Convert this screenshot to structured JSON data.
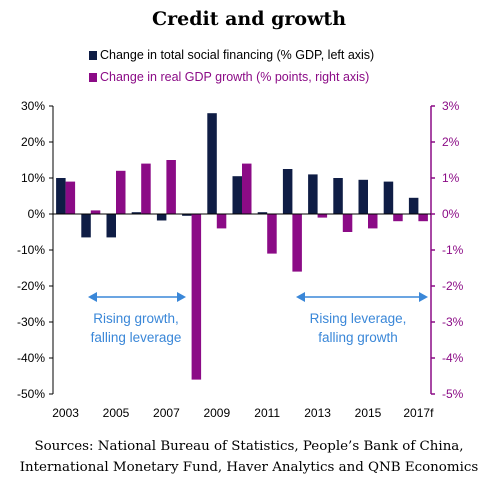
{
  "chart_data": {
    "type": "bar",
    "title": "Credit and growth",
    "categories": [
      "2003",
      "2004",
      "2005",
      "2006",
      "2007",
      "2008",
      "2009",
      "2010",
      "2011",
      "2012",
      "2013",
      "2014",
      "2015",
      "2016",
      "2017f"
    ],
    "x_tick_labels": [
      "2003",
      "2005",
      "2007",
      "2009",
      "2011",
      "2013",
      "2015",
      "2017f"
    ],
    "series": [
      {
        "name": "Change in total social financing (% GDP, left axis)",
        "axis": "left",
        "color": "#0f1d45",
        "values": [
          10,
          -6.5,
          -6.5,
          0.5,
          -1.8,
          -0.5,
          28,
          10.5,
          0.5,
          12.5,
          11,
          10,
          9.5,
          9,
          4.5
        ]
      },
      {
        "name": "Change in real GDP growth (% points, right axis)",
        "axis": "right",
        "color": "#8b0b86",
        "values": [
          0.9,
          0.1,
          1.2,
          1.4,
          1.5,
          -4.6,
          -0.4,
          1.4,
          -1.1,
          -1.6,
          -0.1,
          -0.5,
          -0.4,
          -0.2,
          -0.2
        ]
      }
    ],
    "y_left": {
      "min": -50,
      "max": 30,
      "step": 10,
      "format": "percent"
    },
    "y_right": {
      "min": -5,
      "max": 3,
      "step": 1,
      "format": "percent"
    },
    "grid": false,
    "legend_position": "top",
    "annotations": [
      {
        "line1": "Rising growth,",
        "line2": "falling leverage"
      },
      {
        "line1": "Rising leverage,",
        "line2": "falling growth"
      }
    ]
  },
  "source": {
    "line1": "Sources: National Bureau of Statistics, People’s Bank of China,",
    "line2": "International Monetary Fund, Haver Analytics and QNB Economics"
  }
}
